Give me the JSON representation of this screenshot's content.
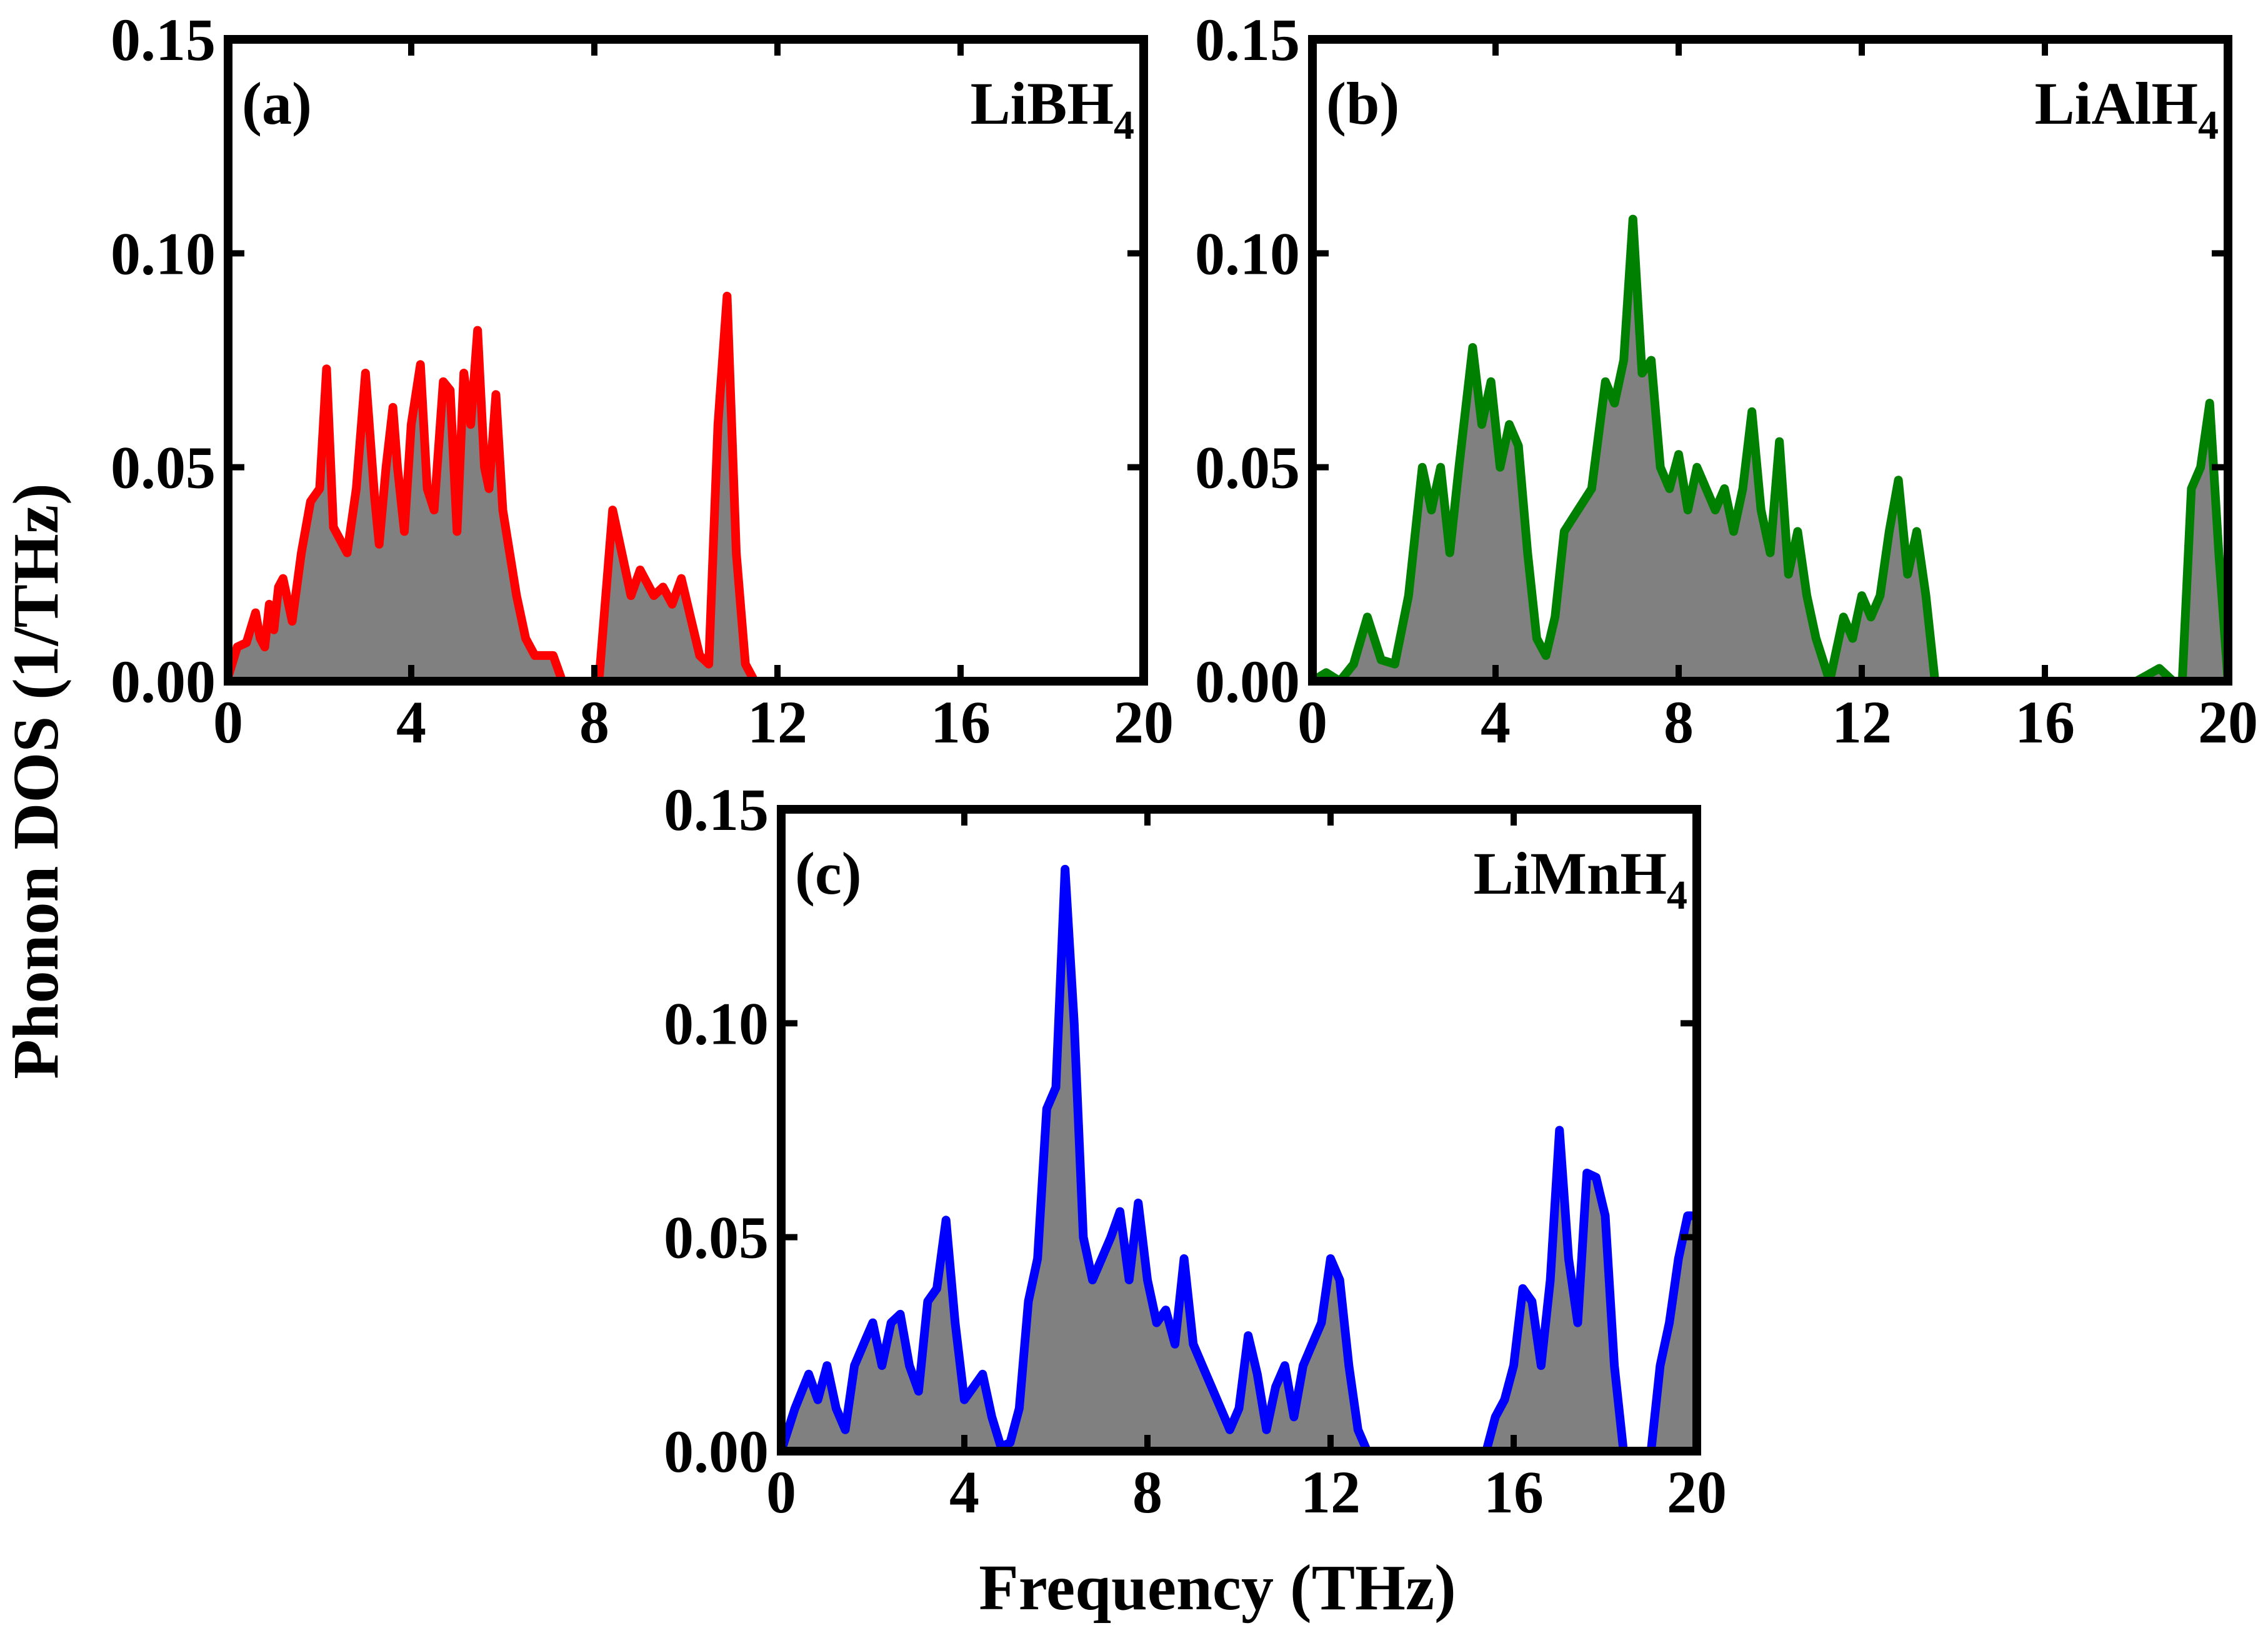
{
  "ylabel": "Phonon DOS (1/THz)",
  "xlabel": "Frequency (THz)",
  "chart_data": [
    {
      "type": "area",
      "panel_label": "(a)",
      "compound": "LiBH",
      "compound_sub": "4",
      "color": "#ff0000",
      "fill": "#808080",
      "xlim": [
        0,
        20
      ],
      "ylim": [
        0,
        0.15
      ],
      "xticks": [
        "0",
        "4",
        "8",
        "12",
        "16",
        "20"
      ],
      "yticks": [
        "0.00",
        "0.05",
        "0.10",
        "0.15"
      ],
      "x": [
        0,
        0.2,
        0.4,
        0.6,
        0.7,
        0.8,
        0.9,
        1.0,
        1.1,
        1.2,
        1.4,
        1.6,
        1.8,
        2.0,
        2.15,
        2.3,
        2.45,
        2.6,
        2.8,
        3.0,
        3.2,
        3.3,
        3.45,
        3.6,
        3.7,
        3.85,
        4.0,
        4.2,
        4.35,
        4.5,
        4.7,
        4.85,
        5.0,
        5.15,
        5.3,
        5.45,
        5.6,
        5.7,
        5.85,
        6.0,
        6.15,
        6.3,
        6.5,
        6.7,
        6.9,
        7.1,
        7.3,
        7.6,
        7.9,
        8.1,
        8.4,
        8.8,
        9.0,
        9.3,
        9.5,
        9.7,
        9.9,
        10.1,
        10.3,
        10.5,
        10.7,
        10.9,
        11.1,
        11.3,
        11.5,
        11.8,
        12.0,
        12.3,
        12.5,
        12.7,
        12.9,
        13.2,
        14,
        16,
        18,
        20
      ],
      "y": [
        0.001,
        0.008,
        0.009,
        0.016,
        0.01,
        0.008,
        0.018,
        0.012,
        0.022,
        0.024,
        0.014,
        0.03,
        0.042,
        0.045,
        0.073,
        0.036,
        0.033,
        0.03,
        0.045,
        0.072,
        0.043,
        0.032,
        0.05,
        0.064,
        0.05,
        0.035,
        0.06,
        0.074,
        0.045,
        0.04,
        0.07,
        0.068,
        0.035,
        0.072,
        0.06,
        0.082,
        0.05,
        0.045,
        0.067,
        0.04,
        0.03,
        0.02,
        0.01,
        0.006,
        0.006,
        0.006,
        0.0,
        0.0,
        0.0,
        0.0,
        0.04,
        0.02,
        0.026,
        0.02,
        0.022,
        0.018,
        0.024,
        0.015,
        0.006,
        0.004,
        0.06,
        0.09,
        0.03,
        0.004,
        0.0,
        0.0,
        0.0,
        0.0,
        0.0,
        0.0,
        0.0,
        0.0,
        0.0,
        0.0,
        0.0,
        0.0
      ]
    },
    {
      "type": "area",
      "panel_label": "(b)",
      "compound": "LiAlH",
      "compound_sub": "4",
      "color": "#008000",
      "fill": "#808080",
      "xlim": [
        0,
        20
      ],
      "ylim": [
        0,
        0.15
      ],
      "xticks": [
        "0",
        "4",
        "8",
        "12",
        "16",
        "20"
      ],
      "yticks": [
        "0.00",
        "0.05",
        "0.10",
        "0.15"
      ],
      "x": [
        0,
        0.3,
        0.6,
        0.9,
        1.2,
        1.5,
        1.8,
        2.1,
        2.4,
        2.6,
        2.8,
        3.0,
        3.2,
        3.5,
        3.7,
        3.9,
        4.1,
        4.3,
        4.5,
        4.7,
        4.9,
        5.1,
        5.3,
        5.5,
        5.8,
        6.1,
        6.4,
        6.6,
        6.8,
        7.0,
        7.2,
        7.4,
        7.6,
        7.8,
        8.0,
        8.2,
        8.4,
        8.6,
        8.8,
        9.0,
        9.2,
        9.4,
        9.6,
        9.8,
        10.0,
        10.2,
        10.4,
        10.6,
        10.8,
        11.0,
        11.3,
        11.6,
        11.8,
        12.0,
        12.2,
        12.4,
        12.6,
        12.8,
        13.0,
        13.2,
        13.4,
        13.6,
        13.8,
        14.0,
        14.3,
        16,
        18.0,
        18.5,
        18.8,
        19.0,
        19.2,
        19.4,
        19.6,
        19.8,
        20
      ],
      "y": [
        0.0,
        0.002,
        0.0,
        0.004,
        0.015,
        0.005,
        0.004,
        0.02,
        0.05,
        0.04,
        0.05,
        0.03,
        0.05,
        0.078,
        0.06,
        0.07,
        0.05,
        0.06,
        0.055,
        0.03,
        0.01,
        0.006,
        0.015,
        0.035,
        0.04,
        0.045,
        0.07,
        0.065,
        0.075,
        0.108,
        0.072,
        0.075,
        0.05,
        0.045,
        0.053,
        0.04,
        0.05,
        0.045,
        0.04,
        0.045,
        0.035,
        0.045,
        0.063,
        0.04,
        0.03,
        0.056,
        0.025,
        0.035,
        0.02,
        0.01,
        0.0,
        0.015,
        0.01,
        0.02,
        0.015,
        0.02,
        0.035,
        0.047,
        0.025,
        0.035,
        0.02,
        0.0,
        0.0,
        0.0,
        0.0,
        0.0,
        0.0,
        0.003,
        0.0,
        0.0,
        0.045,
        0.05,
        0.065,
        0.03,
        0.0
      ]
    },
    {
      "type": "area",
      "panel_label": "(c)",
      "compound": "LiMnH",
      "compound_sub": "4",
      "color": "#0000ff",
      "fill": "#808080",
      "xlim": [
        0,
        20
      ],
      "ylim": [
        0,
        0.15
      ],
      "xticks": [
        "0",
        "4",
        "8",
        "12",
        "16",
        "20"
      ],
      "yticks": [
        "0.00",
        "0.05",
        "0.10",
        "0.15"
      ],
      "x": [
        0,
        0.3,
        0.6,
        0.8,
        1.0,
        1.2,
        1.4,
        1.6,
        1.8,
        2.0,
        2.2,
        2.4,
        2.6,
        2.8,
        3.0,
        3.2,
        3.4,
        3.6,
        3.8,
        4.0,
        4.2,
        4.4,
        4.6,
        4.8,
        5.0,
        5.2,
        5.4,
        5.6,
        5.8,
        6.0,
        6.2,
        6.4,
        6.6,
        6.8,
        7.0,
        7.2,
        7.4,
        7.6,
        7.8,
        8.0,
        8.2,
        8.4,
        8.6,
        8.8,
        9.0,
        9.2,
        9.4,
        9.6,
        9.8,
        10.0,
        10.2,
        10.4,
        10.6,
        10.8,
        11.0,
        11.2,
        11.4,
        11.6,
        11.8,
        12.0,
        12.2,
        12.4,
        12.6,
        12.8,
        13.0,
        13.2,
        13.4,
        15.4,
        15.6,
        15.8,
        16.0,
        16.2,
        16.4,
        16.6,
        16.8,
        17.0,
        17.2,
        17.4,
        17.6,
        17.8,
        18.0,
        18.2,
        18.4,
        18.6,
        18.8,
        19.0,
        19.2,
        19.4,
        19.6,
        19.8,
        20
      ],
      "y": [
        0.0,
        0.01,
        0.018,
        0.012,
        0.02,
        0.01,
        0.005,
        0.02,
        0.025,
        0.03,
        0.02,
        0.03,
        0.032,
        0.02,
        0.014,
        0.035,
        0.038,
        0.054,
        0.03,
        0.012,
        0.015,
        0.018,
        0.008,
        0.001,
        0.002,
        0.01,
        0.035,
        0.045,
        0.08,
        0.085,
        0.136,
        0.1,
        0.05,
        0.04,
        0.045,
        0.05,
        0.056,
        0.04,
        0.058,
        0.04,
        0.03,
        0.033,
        0.025,
        0.045,
        0.025,
        0.02,
        0.015,
        0.01,
        0.005,
        0.01,
        0.027,
        0.018,
        0.005,
        0.015,
        0.02,
        0.008,
        0.02,
        0.025,
        0.03,
        0.045,
        0.04,
        0.02,
        0.005,
        0.0,
        0.0,
        0.0,
        0.0,
        0.0,
        0.008,
        0.012,
        0.02,
        0.038,
        0.035,
        0.02,
        0.04,
        0.075,
        0.045,
        0.03,
        0.065,
        0.064,
        0.055,
        0.02,
        0.0,
        0.0,
        0.0,
        0.0,
        0.02,
        0.03,
        0.045,
        0.055,
        0.055
      ]
    }
  ]
}
